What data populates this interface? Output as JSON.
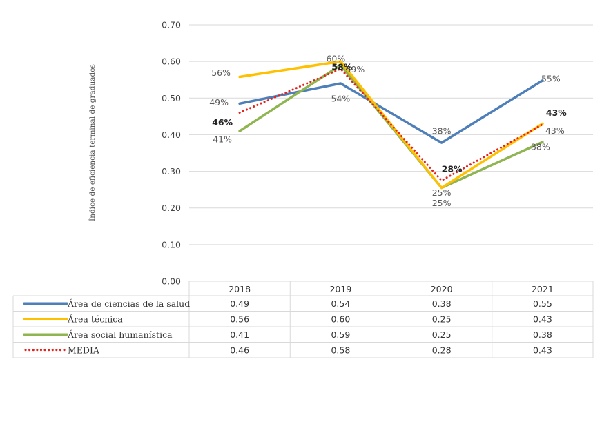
{
  "chart_data": {
    "type": "line",
    "title": "",
    "ylabel": "Índice de eficiencia terminal de graduados",
    "xlabel": "",
    "ylim": [
      0,
      0.7
    ],
    "yticks": [
      "0.00",
      "0.10",
      "0.20",
      "0.30",
      "0.40",
      "0.50",
      "0.60",
      "0.70"
    ],
    "grid": true,
    "legend": "data-table",
    "categories": [
      "2018",
      "2019",
      "2020",
      "2021"
    ],
    "series": [
      {
        "name": "Área de ciencias de la salud",
        "color": "#4e7fb8",
        "style": "solid",
        "values": [
          0.485,
          0.54,
          0.378,
          0.548
        ],
        "table_values": [
          "0.49",
          "0.54",
          "0.38",
          "0.55"
        ],
        "labels": [
          "49%",
          "54%",
          "38%",
          "55%"
        ]
      },
      {
        "name": "Área técnica",
        "color": "#ffc000",
        "style": "solid",
        "values": [
          0.558,
          0.6,
          0.255,
          0.43
        ],
        "table_values": [
          "0.56",
          "0.60",
          "0.25",
          "0.43"
        ],
        "labels": [
          "56%",
          "60%",
          "25%",
          "43%"
        ]
      },
      {
        "name": "Área social humanística",
        "color": "#8fb550",
        "style": "solid",
        "values": [
          0.41,
          0.59,
          0.255,
          0.38
        ],
        "table_values": [
          "0.41",
          "0.59",
          "0.25",
          "0.38"
        ],
        "labels": [
          "41%",
          "59%",
          "25%",
          "38%"
        ]
      },
      {
        "name": "MEDIA",
        "color": "#e8201c",
        "style": "dotted",
        "values": [
          0.46,
          0.58,
          0.275,
          0.428
        ],
        "table_values": [
          "0.46",
          "0.58",
          "0.28",
          "0.43"
        ],
        "labels": [
          "46%",
          "58%",
          "28%",
          "43%"
        ]
      }
    ]
  }
}
